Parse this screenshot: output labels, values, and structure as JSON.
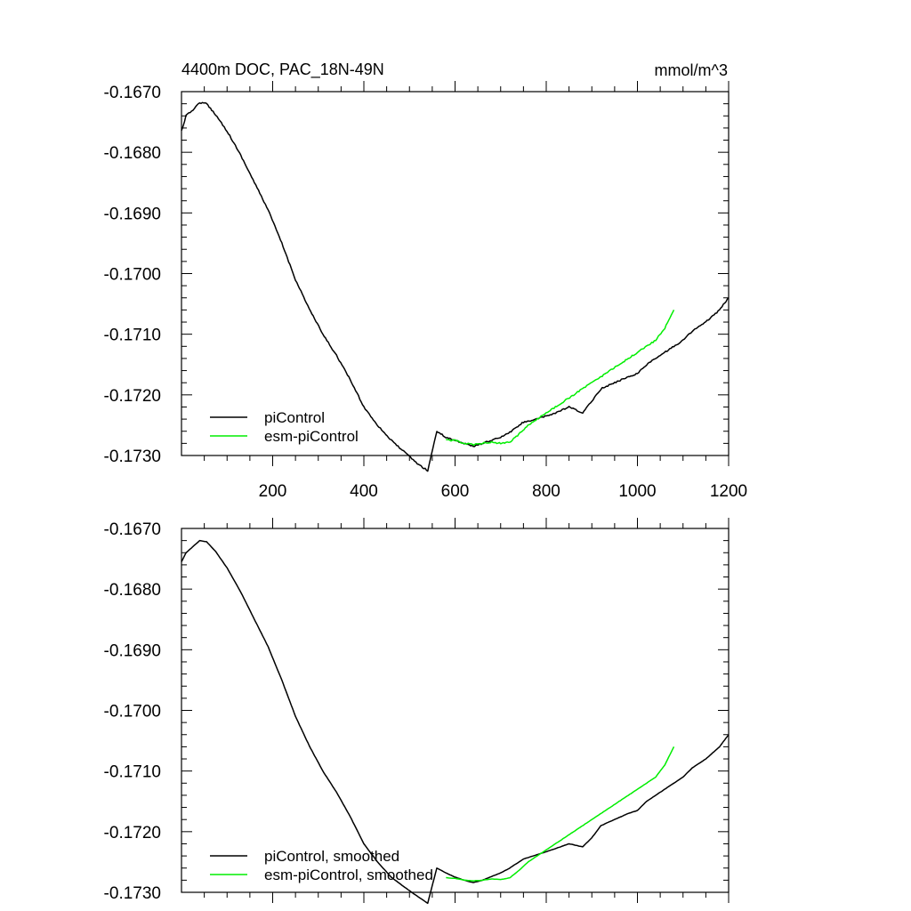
{
  "chart_data": [
    {
      "type": "line",
      "title": "4400m DOC, PAC_18N-49N",
      "units_label": "mmol/m^3",
      "xlim": [
        0,
        1200
      ],
      "ylim": [
        -0.173,
        -0.167
      ],
      "xticks": [
        200,
        400,
        600,
        800,
        1000,
        1200
      ],
      "xtick_labels": [
        "200",
        "400",
        "600",
        "800",
        "1000",
        "1200"
      ],
      "yticks": [
        -0.167,
        -0.168,
        -0.169,
        -0.17,
        -0.171,
        -0.172,
        -0.173
      ],
      "ytick_labels": [
        "-0.1670",
        "-0.1680",
        "-0.1690",
        "-0.1700",
        "-0.1710",
        "-0.1720",
        "-0.1730"
      ],
      "legend_position": "bottom-left",
      "series": [
        {
          "name": "piControl",
          "color": "#000000",
          "x": [
            0,
            10,
            25,
            40,
            55,
            75,
            100,
            130,
            160,
            190,
            220,
            250,
            280,
            310,
            340,
            370,
            400,
            430,
            460,
            490,
            520,
            540,
            560,
            580,
            600,
            620,
            640,
            660,
            680,
            700,
            720,
            750,
            780,
            800,
            820,
            850,
            880,
            900,
            920,
            950,
            980,
            1000,
            1020,
            1050,
            1080,
            1100,
            1120,
            1150,
            1180,
            1200
          ],
          "y": [
            -0.16765,
            -0.1674,
            -0.1673,
            -0.16718,
            -0.1672,
            -0.16738,
            -0.16765,
            -0.16805,
            -0.1685,
            -0.16895,
            -0.1695,
            -0.1701,
            -0.17058,
            -0.171,
            -0.17135,
            -0.17175,
            -0.1722,
            -0.1725,
            -0.17275,
            -0.17295,
            -0.17315,
            -0.17325,
            -0.1726,
            -0.1727,
            -0.17275,
            -0.1728,
            -0.17285,
            -0.1728,
            -0.17275,
            -0.1727,
            -0.17262,
            -0.17245,
            -0.1724,
            -0.17235,
            -0.1723,
            -0.1722,
            -0.1723,
            -0.1721,
            -0.1719,
            -0.1718,
            -0.1717,
            -0.17165,
            -0.1715,
            -0.17135,
            -0.1712,
            -0.1711,
            -0.17095,
            -0.1708,
            -0.1706,
            -0.1704
          ]
        },
        {
          "name": "esm-piControl",
          "color": "#00ee00",
          "x": [
            580,
            600,
            620,
            640,
            660,
            680,
            700,
            720,
            740,
            760,
            780,
            800,
            820,
            840,
            860,
            880,
            900,
            920,
            940,
            960,
            980,
            1000,
            1020,
            1040,
            1060,
            1080
          ],
          "y": [
            -0.17275,
            -0.17275,
            -0.1728,
            -0.17282,
            -0.1728,
            -0.17278,
            -0.1728,
            -0.17278,
            -0.17265,
            -0.1725,
            -0.1724,
            -0.1723,
            -0.1722,
            -0.1721,
            -0.172,
            -0.1719,
            -0.1718,
            -0.1717,
            -0.1716,
            -0.1715,
            -0.1714,
            -0.1713,
            -0.1712,
            -0.1711,
            -0.1709,
            -0.1706
          ]
        }
      ]
    },
    {
      "type": "line",
      "xlim": [
        0,
        1200
      ],
      "ylim": [
        -0.173,
        -0.167
      ],
      "xticks": [
        200,
        400,
        600,
        800,
        1000,
        1200
      ],
      "yticks": [
        -0.167,
        -0.168,
        -0.169,
        -0.17,
        -0.171,
        -0.172,
        -0.173
      ],
      "ytick_labels": [
        "-0.1670",
        "-0.1680",
        "-0.1690",
        "-0.1700",
        "-0.1710",
        "-0.1720",
        "-0.1730"
      ],
      "legend_position": "bottom-left",
      "series": [
        {
          "name": "piControl, smoothed",
          "color": "#000000",
          "x": [
            0,
            10,
            25,
            40,
            55,
            75,
            100,
            130,
            160,
            190,
            220,
            250,
            280,
            310,
            340,
            370,
            400,
            430,
            460,
            490,
            520,
            540,
            560,
            580,
            600,
            620,
            640,
            660,
            680,
            700,
            720,
            750,
            780,
            800,
            820,
            850,
            880,
            900,
            920,
            950,
            980,
            1000,
            1020,
            1050,
            1080,
            1100,
            1120,
            1150,
            1180,
            1200
          ],
          "y": [
            -0.16755,
            -0.1674,
            -0.1673,
            -0.1672,
            -0.16722,
            -0.16738,
            -0.16765,
            -0.16805,
            -0.1685,
            -0.16895,
            -0.1695,
            -0.1701,
            -0.17058,
            -0.171,
            -0.17135,
            -0.17175,
            -0.1722,
            -0.1725,
            -0.17275,
            -0.17292,
            -0.17308,
            -0.17318,
            -0.1726,
            -0.17268,
            -0.17275,
            -0.1728,
            -0.17284,
            -0.1728,
            -0.17274,
            -0.17268,
            -0.1726,
            -0.17245,
            -0.17238,
            -0.17233,
            -0.17228,
            -0.1722,
            -0.17225,
            -0.1721,
            -0.1719,
            -0.1718,
            -0.1717,
            -0.17165,
            -0.1715,
            -0.17135,
            -0.1712,
            -0.1711,
            -0.17095,
            -0.1708,
            -0.1706,
            -0.1704
          ]
        },
        {
          "name": "esm-piControl, smoothed",
          "color": "#00ee00",
          "x": [
            580,
            600,
            620,
            640,
            660,
            680,
            700,
            720,
            740,
            760,
            780,
            800,
            820,
            840,
            860,
            880,
            900,
            920,
            940,
            960,
            980,
            1000,
            1020,
            1040,
            1060,
            1080
          ],
          "y": [
            -0.17276,
            -0.17277,
            -0.1728,
            -0.17281,
            -0.1728,
            -0.17278,
            -0.17279,
            -0.17276,
            -0.17264,
            -0.1725,
            -0.1724,
            -0.1723,
            -0.1722,
            -0.1721,
            -0.172,
            -0.1719,
            -0.1718,
            -0.1717,
            -0.1716,
            -0.1715,
            -0.1714,
            -0.1713,
            -0.1712,
            -0.1711,
            -0.1709,
            -0.1706
          ]
        }
      ]
    }
  ]
}
